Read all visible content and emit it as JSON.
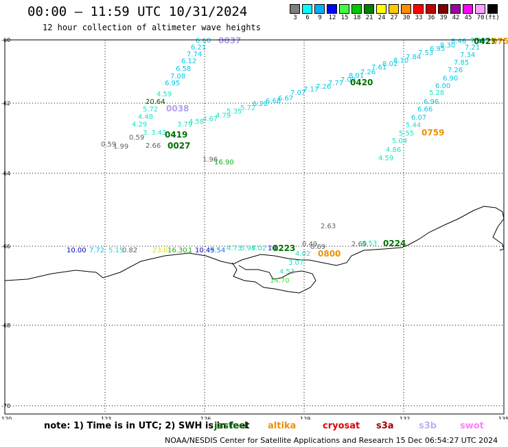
{
  "header": {
    "title": "00:00 – 11:59 UTC 10/31/2024",
    "subtitle": "12 hour collection of altimeter wave heights"
  },
  "legend": {
    "unit": "(ft)",
    "items": [
      {
        "label": "3",
        "color": "#7f7f7f"
      },
      {
        "label": "6",
        "color": "#00ffff"
      },
      {
        "label": "9",
        "color": "#00b0ff"
      },
      {
        "label": "12",
        "color": "#0000ff"
      },
      {
        "label": "15",
        "color": "#40ff40"
      },
      {
        "label": "18",
        "color": "#00c800"
      },
      {
        "label": "21",
        "color": "#008000"
      },
      {
        "label": "24",
        "color": "#ffff00"
      },
      {
        "label": "27",
        "color": "#ffc800"
      },
      {
        "label": "30",
        "color": "#ff8c00"
      },
      {
        "label": "33",
        "color": "#ff0000"
      },
      {
        "label": "36",
        "color": "#c00000"
      },
      {
        "label": "39",
        "color": "#800000"
      },
      {
        "label": "42",
        "color": "#a000a0"
      },
      {
        "label": "45",
        "color": "#ff00ff"
      },
      {
        "label": "70",
        "color": "#ffa0ff"
      },
      {
        "label": "",
        "color": "#000000"
      }
    ]
  },
  "axes": {
    "lat_labels": [
      "-60",
      "-62",
      "-64",
      "-66",
      "-68",
      "-70"
    ],
    "lon_labels": [
      "120",
      "123",
      "126",
      "129",
      "132",
      "135"
    ]
  },
  "measurements": [
    {
      "t": "6.60",
      "c": "#00c8e6"
    },
    {
      "t": "6.21",
      "c": "#00c8e6"
    },
    {
      "t": "7.74",
      "c": "#00c8e6"
    },
    {
      "t": "6.12",
      "c": "#00c8e6"
    },
    {
      "t": "6.58",
      "c": "#00c8e6"
    },
    {
      "t": "7.08",
      "c": "#00c8e6"
    },
    {
      "t": "6.95",
      "c": "#00c8e6"
    },
    {
      "t": "4.59",
      "c": "#20e0c0"
    },
    {
      "t": "20.64",
      "c": "#006000"
    },
    {
      "t": "5.72",
      "c": "#20e0c0"
    },
    {
      "t": "4.48",
      "c": "#20e0c0"
    },
    {
      "t": "4.29",
      "c": "#20e0c0"
    },
    {
      "t": "3.",
      "c": "#20e0c0"
    },
    {
      "t": "3.43",
      "c": "#20e0c0"
    },
    {
      "t": "0.59",
      "c": "#606060"
    },
    {
      "t": "1.99",
      "c": "#606060"
    },
    {
      "t": "0.59",
      "c": "#606060"
    },
    {
      "t": "2.66",
      "c": "#606060"
    },
    {
      "t": "3.79",
      "c": "#20e0c0"
    },
    {
      "t": "4.58",
      "c": "#20e0c0"
    },
    {
      "t": "4.67",
      "c": "#20e0c0"
    },
    {
      "t": "4.79",
      "c": "#20e0c0"
    },
    {
      "t": "5.35",
      "c": "#20e0c0"
    },
    {
      "t": "5.72",
      "c": "#20e0c0"
    },
    {
      "t": "6.28",
      "c": "#00c8e6"
    },
    {
      "t": "6.68",
      "c": "#00c8e6"
    },
    {
      "t": "6.67",
      "c": "#00c8e6"
    },
    {
      "t": "7.07",
      "c": "#00c8e6"
    },
    {
      "t": "7.17",
      "c": "#00c8e6"
    },
    {
      "t": "7.26",
      "c": "#00c8e6"
    },
    {
      "t": "7.77",
      "c": "#00c8e6"
    },
    {
      "t": "7.09",
      "c": "#00c8e6"
    },
    {
      "t": "8.01",
      "c": "#00c8e6"
    },
    {
      "t": "7.26",
      "c": "#00c8e6"
    },
    {
      "t": "7.61",
      "c": "#00c8e6"
    },
    {
      "t": "8.02",
      "c": "#00c8e6"
    },
    {
      "t": "8.10",
      "c": "#00c8e6"
    },
    {
      "t": "7.84",
      "c": "#00c8e6"
    },
    {
      "t": "7.53",
      "c": "#00c8e6"
    },
    {
      "t": "6.95",
      "c": "#00c8e6"
    },
    {
      "t": "8.30",
      "c": "#00c8e6"
    },
    {
      "t": "8.46",
      "c": "#00c8e6"
    },
    {
      "t": "7.94",
      "c": "#00c8e6"
    },
    {
      "t": "7.21",
      "c": "#00c8e6"
    },
    {
      "t": "7.34",
      "c": "#00c8e6"
    },
    {
      "t": "7.85",
      "c": "#00c8e6"
    },
    {
      "t": "7.26",
      "c": "#00c8e6"
    },
    {
      "t": "6.90",
      "c": "#00c8e6"
    },
    {
      "t": "6.00",
      "c": "#00c8e6"
    },
    {
      "t": "5.28",
      "c": "#20e0c0"
    },
    {
      "t": "6.96",
      "c": "#00c8e6"
    },
    {
      "t": "6.66",
      "c": "#00c8e6"
    },
    {
      "t": "6.07",
      "c": "#00c8e6"
    },
    {
      "t": "5.44",
      "c": "#20e0c0"
    },
    {
      "t": "5.55",
      "c": "#20e0c0"
    },
    {
      "t": "5.04",
      "c": "#20e0c0"
    },
    {
      "t": "4.86",
      "c": "#20e0c0"
    },
    {
      "t": "4.59",
      "c": "#20e0c0"
    },
    {
      "t": "1.96",
      "c": "#606060"
    },
    {
      "t": "16.90",
      "c": "#10b010"
    },
    {
      "t": "2.63",
      "c": "#606060"
    },
    {
      "t": "10.00",
      "c": "#0000c0"
    },
    {
      "t": "7.72",
      "c": "#00c8e6"
    },
    {
      "t": "5.15",
      "c": "#20e0c0"
    },
    {
      "t": "0.82",
      "c": "#606060"
    },
    {
      "t": "23.0",
      "c": "#e0e000"
    },
    {
      "t": "16.30",
      "c": "#10b010"
    },
    {
      "t": "1",
      "c": "#10b010"
    },
    {
      "t": "10.45",
      "c": "#0000c0"
    },
    {
      "t": "9.54",
      "c": "#0080ff"
    },
    {
      "t": "4.73",
      "c": "#20e0c0"
    },
    {
      "t": "5.94",
      "c": "#20e0c0"
    },
    {
      "t": "5.02",
      "c": "#20e0c0"
    },
    {
      "t": "10.",
      "c": "#0000c0"
    },
    {
      "t": "0.49",
      "c": "#606060"
    },
    {
      "t": "0.69",
      "c": "#606060"
    },
    {
      "t": "4.02",
      "c": "#20e0c0"
    },
    {
      "t": "3.07",
      "c": "#20e0c0"
    },
    {
      "t": "4.53",
      "c": "#20e0c0"
    },
    {
      "t": "14.70",
      "c": "#40e040"
    },
    {
      "t": "2.69",
      "c": "#606060"
    },
    {
      "t": "6.53",
      "c": "#20e0c0"
    }
  ],
  "passes": [
    {
      "t": "0037",
      "c": "#b4a0f0"
    },
    {
      "t": "0038",
      "c": "#b4a0f0"
    },
    {
      "t": "0419",
      "c": "#007000"
    },
    {
      "t": "0027",
      "c": "#007000"
    },
    {
      "t": "0420",
      "c": "#007000"
    },
    {
      "t": "0421",
      "c": "#007000"
    },
    {
      "t": "075",
      "c": "#f0a000"
    },
    {
      "t": "0759",
      "c": "#f09000"
    },
    {
      "t": "0223",
      "c": "#007000"
    },
    {
      "t": "0800",
      "c": "#f09000"
    },
    {
      "t": "0224",
      "c": "#007000"
    }
  ],
  "footer": {
    "note": "note: 1) Time is in UTC; 2) SWH is in feet",
    "satellites": [
      {
        "name": "jastecl",
        "color": "#007000"
      },
      {
        "name": "altika",
        "color": "#f09000"
      },
      {
        "name": "cryosat",
        "color": "#e00000"
      },
      {
        "name": "s3a",
        "color": "#a00000"
      },
      {
        "name": "s3b",
        "color": "#c0b0f0"
      },
      {
        "name": "swot",
        "color": "#ff80ff"
      }
    ],
    "credit": "NOAA/NESDIS Center for Satellite Applications and Research    15 Dec 06:54:27 UTC 2024"
  }
}
